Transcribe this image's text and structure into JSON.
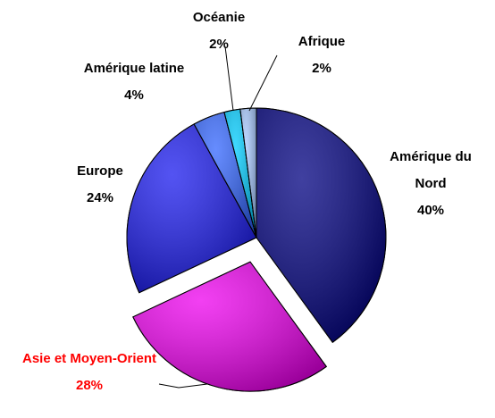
{
  "chart_data": {
    "type": "pie",
    "categories": [
      "Amérique du Nord",
      "Asie et Moyen-Orient",
      "Europe",
      "Amérique latine",
      "Océanie",
      "Afrique"
    ],
    "values": [
      40,
      28,
      24,
      4,
      2,
      2
    ],
    "value_labels": [
      "40%",
      "28%",
      "24%",
      "4%",
      "2%",
      "2%"
    ],
    "colors": [
      "#000080",
      "#ee00ee",
      "#1a1aee",
      "#3366ff",
      "#00ccff",
      "#a6c8ff"
    ],
    "label_colors": [
      "#000000",
      "#ff0000",
      "#000000",
      "#000000",
      "#000000",
      "#000000"
    ],
    "exploded": [
      false,
      true,
      false,
      false,
      false,
      false
    ],
    "start_angle": 0
  }
}
